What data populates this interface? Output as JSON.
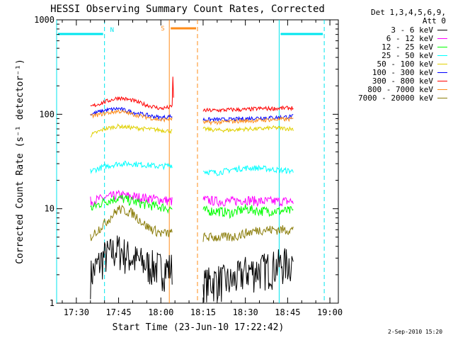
{
  "chart_data": {
    "type": "line",
    "title": "HESSI Observing Summary Count Rates, Corrected",
    "xlabel": "Start Time (23-Jun-10 17:22:42)",
    "ylabel": "Corrected Count Rate (s⁻¹ detector⁻¹)",
    "yscale": "log",
    "ylim": [
      1,
      1000
    ],
    "xlim": [
      "17:23",
      "19:03"
    ],
    "x_ticks": [
      "17:30",
      "17:45",
      "18:00",
      "18:15",
      "18:30",
      "18:45",
      "19:00"
    ],
    "y_ticks": [
      "1",
      "10",
      "100",
      "1000"
    ],
    "legend_header": [
      "Det 1,3,4,5,6,9,",
      "Att 0"
    ],
    "legend_position": "right",
    "timestamp": "2-Sep-2010 15:20",
    "annotations": {
      "night_label": "N",
      "saa_label": "S",
      "night_color": "#00e5ee",
      "saa_color": "#ff8c1a",
      "night_intervals": [
        [
          "17:23",
          "17:40"
        ],
        [
          "18:42",
          "18:58"
        ]
      ],
      "saa_interval": [
        "18:03",
        "18:13"
      ]
    },
    "segments": [
      [
        "17:35",
        "18:04"
      ],
      [
        "18:15",
        "18:47"
      ]
    ],
    "series": [
      {
        "name": "3 - 6 keV",
        "color": "#000000",
        "seg1": [
          [
            "17:35",
            2.0
          ],
          [
            "17:40",
            3.2
          ],
          [
            "17:45",
            3.8
          ],
          [
            "17:50",
            3.0
          ],
          [
            "17:55",
            2.6
          ],
          [
            "18:00",
            2.4
          ],
          [
            "18:04",
            2.4
          ]
        ],
        "seg2": [
          [
            "18:15",
            1.6
          ],
          [
            "18:20",
            1.8
          ],
          [
            "18:25",
            1.7
          ],
          [
            "18:30",
            2.2
          ],
          [
            "18:35",
            2.3
          ],
          [
            "18:40",
            2.5
          ],
          [
            "18:47",
            2.8
          ]
        ]
      },
      {
        "name": "6 - 12 keV",
        "color": "#ff00ff",
        "seg1": [
          [
            "17:35",
            12
          ],
          [
            "17:40",
            13
          ],
          [
            "17:45",
            14
          ],
          [
            "17:50",
            13.5
          ],
          [
            "17:55",
            13
          ],
          [
            "18:00",
            12.5
          ],
          [
            "18:04",
            12
          ]
        ],
        "seg2": [
          [
            "18:15",
            12.5
          ],
          [
            "18:20",
            12
          ],
          [
            "18:25",
            12
          ],
          [
            "18:30",
            12.5
          ],
          [
            "18:35",
            12
          ],
          [
            "18:40",
            12
          ],
          [
            "18:47",
            12
          ]
        ]
      },
      {
        "name": "12 - 25 keV",
        "color": "#00ff00",
        "seg1": [
          [
            "17:35",
            10
          ],
          [
            "17:40",
            12
          ],
          [
            "17:45",
            13
          ],
          [
            "17:50",
            12
          ],
          [
            "17:55",
            11
          ],
          [
            "18:00",
            10.5
          ],
          [
            "18:04",
            10
          ]
        ],
        "seg2": [
          [
            "18:15",
            9.5
          ],
          [
            "18:20",
            9.5
          ],
          [
            "18:25",
            9
          ],
          [
            "18:30",
            10
          ],
          [
            "18:35",
            9.5
          ],
          [
            "18:40",
            9.5
          ],
          [
            "18:47",
            9.5
          ]
        ]
      },
      {
        "name": "25 - 50 keV",
        "color": "#00ffff",
        "seg1": [
          [
            "17:35",
            25
          ],
          [
            "17:40",
            28
          ],
          [
            "17:45",
            30
          ],
          [
            "17:50",
            30
          ],
          [
            "17:55",
            29
          ],
          [
            "18:00",
            28
          ],
          [
            "18:04",
            29
          ]
        ],
        "seg2": [
          [
            "18:15",
            25
          ],
          [
            "18:20",
            24
          ],
          [
            "18:25",
            26
          ],
          [
            "18:30",
            27
          ],
          [
            "18:35",
            27
          ],
          [
            "18:40",
            26
          ],
          [
            "18:47",
            25
          ]
        ]
      },
      {
        "name": "50 - 100 keV",
        "color": "#e0d000",
        "seg1": [
          [
            "17:35",
            60
          ],
          [
            "17:40",
            70
          ],
          [
            "17:45",
            75
          ],
          [
            "17:50",
            72
          ],
          [
            "17:55",
            70
          ],
          [
            "18:00",
            68
          ],
          [
            "18:04",
            66
          ]
        ],
        "seg2": [
          [
            "18:15",
            70
          ],
          [
            "18:20",
            68
          ],
          [
            "18:25",
            68
          ],
          [
            "18:30",
            70
          ],
          [
            "18:35",
            70
          ],
          [
            "18:40",
            72
          ],
          [
            "18:47",
            70
          ]
        ]
      },
      {
        "name": "100 - 300 keV",
        "color": "#0000ff",
        "seg1": [
          [
            "17:35",
            100
          ],
          [
            "17:40",
            110
          ],
          [
            "17:45",
            115
          ],
          [
            "17:50",
            105
          ],
          [
            "17:55",
            98
          ],
          [
            "18:00",
            92
          ],
          [
            "18:04",
            95
          ]
        ],
        "seg2": [
          [
            "18:15",
            88
          ],
          [
            "18:20",
            88
          ],
          [
            "18:25",
            88
          ],
          [
            "18:30",
            90
          ],
          [
            "18:35",
            92
          ],
          [
            "18:40",
            92
          ],
          [
            "18:47",
            95
          ]
        ]
      },
      {
        "name": "300 - 800 keV",
        "color": "#ff0000",
        "seg1": [
          [
            "17:35",
            120
          ],
          [
            "17:40",
            135
          ],
          [
            "17:45",
            150
          ],
          [
            "17:50",
            140
          ],
          [
            "17:55",
            125
          ],
          [
            "18:00",
            115
          ],
          [
            "18:04",
            120
          ]
        ],
        "seg2": [
          [
            "18:15",
            110
          ],
          [
            "18:20",
            110
          ],
          [
            "18:25",
            112
          ],
          [
            "18:30",
            112
          ],
          [
            "18:35",
            115
          ],
          [
            "18:40",
            115
          ],
          [
            "18:47",
            117
          ]
        ]
      },
      {
        "name": "800 - 7000 keV",
        "color": "#ff8c1a",
        "seg1": [
          [
            "17:35",
            95
          ],
          [
            "17:40",
            102
          ],
          [
            "17:45",
            108
          ],
          [
            "17:50",
            100
          ],
          [
            "17:55",
            93
          ],
          [
            "18:00",
            87
          ],
          [
            "18:04",
            90
          ]
        ],
        "seg2": [
          [
            "18:15",
            82
          ],
          [
            "18:20",
            82
          ],
          [
            "18:25",
            84
          ],
          [
            "18:30",
            85
          ],
          [
            "18:35",
            86
          ],
          [
            "18:40",
            88
          ],
          [
            "18:47",
            89
          ]
        ]
      },
      {
        "name": "7000 - 20000 keV",
        "color": "#8b7d0a",
        "seg1": [
          [
            "17:35",
            5
          ],
          [
            "17:40",
            7
          ],
          [
            "17:45",
            10
          ],
          [
            "17:50",
            9
          ],
          [
            "17:55",
            6.5
          ],
          [
            "18:00",
            5.5
          ],
          [
            "18:04",
            5.5
          ]
        ],
        "seg2": [
          [
            "18:15",
            5
          ],
          [
            "18:20",
            5
          ],
          [
            "18:25",
            5
          ],
          [
            "18:30",
            5.5
          ],
          [
            "18:35",
            6
          ],
          [
            "18:40",
            6
          ],
          [
            "18:47",
            6
          ]
        ]
      }
    ]
  }
}
